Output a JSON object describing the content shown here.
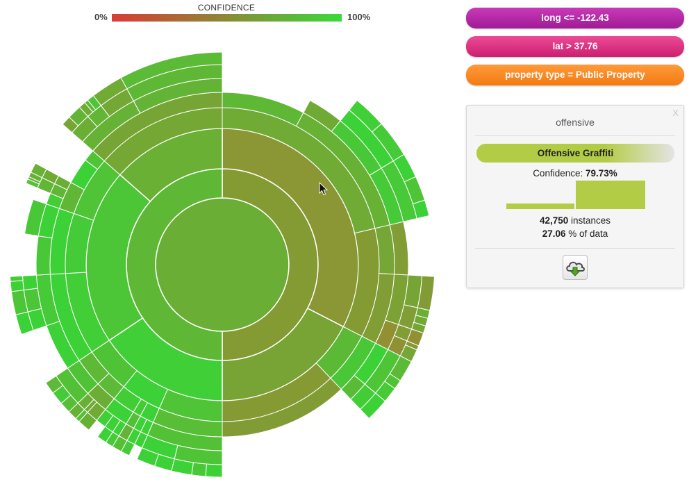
{
  "legend": {
    "title": "CONFIDENCE",
    "min_label": "0%",
    "max_label": "100%",
    "low_color": "#d93b36",
    "high_color": "#3bd93a"
  },
  "filters": [
    {
      "label": "long <= -122.43",
      "color_top": "#c93ab8",
      "color_bottom": "#a01a96"
    },
    {
      "label": "lat > 37.76",
      "color_top": "#ec4b98",
      "color_bottom": "#cc1e6f"
    },
    {
      "label": "property type = Public Property",
      "color_top": "#ff9a3a",
      "color_bottom": "#f47a12"
    }
  ],
  "panel": {
    "close_label": "X",
    "heading": "offensive",
    "prediction": "Offensive Graffiti",
    "prediction_color": "#b3cc45",
    "confidence_label": "Confidence: ",
    "confidence_value": "79.73%",
    "confidence_fraction": 0.7973,
    "bar_color": "#b3cc45",
    "instances_value": "42,750",
    "instances_label": " instances",
    "percent_value": "27.06",
    "percent_label": " % of data",
    "download_icon": "cloud-download-icon"
  }
}
